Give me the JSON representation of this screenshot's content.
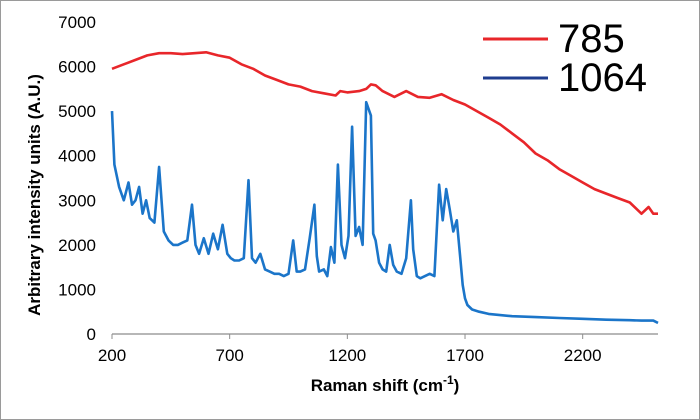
{
  "chart_data": {
    "type": "line",
    "title": "",
    "xlabel_main": "Raman shift (cm",
    "xlabel_sup": "-1",
    "xlabel_tail": ")",
    "ylabel": "Arbitrary intensity units (A.U.)",
    "xlim": [
      200,
      2520
    ],
    "ylim": [
      0,
      7000
    ],
    "x_ticks": [
      200,
      700,
      1200,
      1700,
      2200
    ],
    "x_tick_labels": [
      "200",
      "700",
      "1200",
      "1700",
      "2200"
    ],
    "y_ticks": [
      0,
      1000,
      2000,
      3000,
      4000,
      5000,
      6000,
      7000
    ],
    "y_tick_labels": [
      "0",
      "1000",
      "2000",
      "3000",
      "4000",
      "5000",
      "6000",
      "7000"
    ],
    "grid": false,
    "legend_position": "top-right",
    "series": [
      {
        "name": "785",
        "color": "#e8262a",
        "x": [
          200,
          250,
          300,
          350,
          400,
          450,
          500,
          550,
          600,
          650,
          700,
          750,
          800,
          850,
          900,
          950,
          1000,
          1050,
          1100,
          1150,
          1170,
          1200,
          1250,
          1280,
          1300,
          1320,
          1350,
          1400,
          1450,
          1500,
          1550,
          1600,
          1650,
          1700,
          1750,
          1800,
          1850,
          1900,
          1950,
          2000,
          2050,
          2100,
          2150,
          2200,
          2250,
          2300,
          2350,
          2400,
          2430,
          2450,
          2480,
          2500,
          2520
        ],
        "y": [
          5950,
          6050,
          6150,
          6250,
          6300,
          6300,
          6280,
          6300,
          6320,
          6250,
          6200,
          6050,
          5950,
          5800,
          5700,
          5600,
          5550,
          5450,
          5400,
          5350,
          5450,
          5420,
          5450,
          5500,
          5600,
          5580,
          5450,
          5320,
          5450,
          5320,
          5300,
          5380,
          5250,
          5150,
          5000,
          4850,
          4700,
          4500,
          4300,
          4050,
          3900,
          3700,
          3550,
          3400,
          3250,
          3150,
          3050,
          2950,
          2800,
          2700,
          2850,
          2700,
          2700
        ]
      },
      {
        "name": "1064",
        "color": "#1f3d8f",
        "x": [
          200,
          210,
          230,
          250,
          270,
          285,
          300,
          315,
          330,
          345,
          360,
          380,
          400,
          420,
          440,
          460,
          480,
          500,
          520,
          540,
          555,
          570,
          590,
          610,
          630,
          650,
          670,
          690,
          705,
          720,
          740,
          760,
          780,
          795,
          810,
          830,
          850,
          870,
          890,
          910,
          930,
          950,
          970,
          985,
          1000,
          1020,
          1040,
          1060,
          1070,
          1080,
          1100,
          1115,
          1130,
          1145,
          1160,
          1175,
          1190,
          1205,
          1220,
          1235,
          1250,
          1265,
          1280,
          1300,
          1310,
          1320,
          1335,
          1350,
          1365,
          1380,
          1395,
          1410,
          1430,
          1450,
          1470,
          1480,
          1495,
          1510,
          1530,
          1550,
          1570,
          1590,
          1605,
          1620,
          1635,
          1650,
          1665,
          1680,
          1690,
          1700,
          1710,
          1730,
          1760,
          1800,
          1900,
          2000,
          2100,
          2200,
          2300,
          2400,
          2450,
          2500,
          2520
        ],
        "y": [
          5000,
          3800,
          3300,
          3000,
          3400,
          2900,
          3000,
          3300,
          2700,
          3000,
          2600,
          2500,
          3750,
          2300,
          2100,
          2000,
          2000,
          2050,
          2100,
          2900,
          2000,
          1800,
          2150,
          1800,
          2250,
          1900,
          2450,
          1800,
          1700,
          1650,
          1650,
          1700,
          3450,
          1700,
          1600,
          1800,
          1450,
          1400,
          1350,
          1350,
          1300,
          1350,
          2100,
          1400,
          1400,
          1450,
          2150,
          2900,
          1750,
          1400,
          1450,
          1300,
          1950,
          1600,
          3800,
          2000,
          1700,
          2200,
          4650,
          2200,
          2400,
          2000,
          5200,
          4900,
          2250,
          2100,
          1600,
          1450,
          1400,
          2000,
          1550,
          1400,
          1350,
          1700,
          3000,
          1900,
          1300,
          1250,
          1300,
          1350,
          1300,
          3350,
          2550,
          3250,
          2800,
          2300,
          2550,
          1700,
          1100,
          800,
          650,
          550,
          500,
          450,
          400,
          380,
          360,
          340,
          320,
          310,
          300,
          300,
          250
        ]
      }
    ]
  }
}
